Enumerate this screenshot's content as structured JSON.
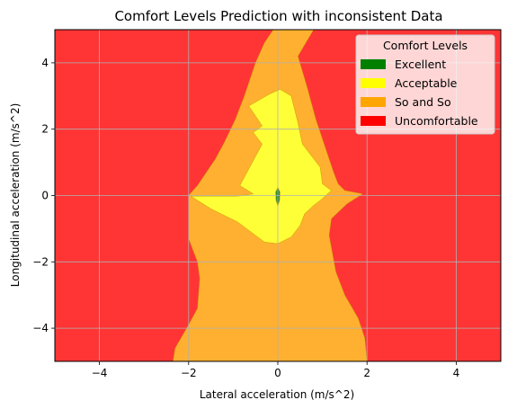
{
  "chart_data": {
    "type": "contour",
    "title": "Comfort Levels Prediction with inconsistent Data",
    "xlabel": "Lateral acceleration (m/s^2)",
    "ylabel": "Longitudinal acceleration (m/s^2)",
    "xlim": [
      -5,
      5
    ],
    "ylim": [
      -5,
      5
    ],
    "xticks": [
      -4,
      -2,
      0,
      2,
      4
    ],
    "yticks": [
      -4,
      -2,
      0,
      2,
      4
    ],
    "xtick_labels": [
      "−4",
      "−2",
      "0",
      "2",
      "4"
    ],
    "ytick_labels": [
      "−4",
      "−2",
      "0",
      "2",
      "4"
    ],
    "grid": true,
    "legend": {
      "title": "Comfort Levels",
      "placement": "top-right",
      "entries": [
        {
          "label": "Excellent",
          "color": "#008000"
        },
        {
          "label": "Acceptable",
          "color": "#ffff00"
        },
        {
          "label": "So and So",
          "color": "#ffa500"
        },
        {
          "label": "Uncomfortable",
          "color": "#ff0000"
        }
      ]
    },
    "regions": [
      {
        "level": "Uncomfortable",
        "fill": "#ff3535",
        "polygon": [
          [
            -5,
            -5
          ],
          [
            5,
            -5
          ],
          [
            5,
            5
          ],
          [
            -5,
            5
          ]
        ]
      },
      {
        "level": "So and So",
        "fill": "#ffb030",
        "polygon": [
          [
            -2.35,
            -5
          ],
          [
            2.0,
            -5
          ],
          [
            1.95,
            -4.3
          ],
          [
            1.8,
            -3.7
          ],
          [
            1.5,
            -3.0
          ],
          [
            1.3,
            -2.3
          ],
          [
            1.15,
            -1.2
          ],
          [
            1.2,
            -0.7
          ],
          [
            1.55,
            -0.25
          ],
          [
            1.9,
            0.05
          ],
          [
            1.5,
            0.15
          ],
          [
            1.35,
            0.35
          ],
          [
            1.25,
            0.7
          ],
          [
            1.05,
            1.5
          ],
          [
            0.85,
            2.3
          ],
          [
            0.65,
            3.3
          ],
          [
            0.45,
            4.2
          ],
          [
            0.8,
            5.0
          ],
          [
            -0.1,
            5.0
          ],
          [
            -0.3,
            4.6
          ],
          [
            -0.5,
            4.0
          ],
          [
            -0.75,
            3.0
          ],
          [
            -0.95,
            2.3
          ],
          [
            -1.2,
            1.6
          ],
          [
            -1.4,
            1.1
          ],
          [
            -1.8,
            0.3
          ],
          [
            -2.0,
            0.0
          ],
          [
            -2.0,
            -1.3
          ],
          [
            -1.8,
            -2.0
          ],
          [
            -1.75,
            -2.5
          ],
          [
            -1.8,
            -3.4
          ],
          [
            -2.0,
            -3.9
          ],
          [
            -2.3,
            -4.6
          ]
        ]
      },
      {
        "level": "Acceptable",
        "fill": "#ffff38",
        "polygon": [
          [
            -0.2,
            3.05
          ],
          [
            0.05,
            3.2
          ],
          [
            0.3,
            3.0
          ],
          [
            0.45,
            2.2
          ],
          [
            0.55,
            1.55
          ],
          [
            0.95,
            0.85
          ],
          [
            1.0,
            0.35
          ],
          [
            1.2,
            0.15
          ],
          [
            0.95,
            -0.15
          ],
          [
            0.8,
            -0.3
          ],
          [
            0.6,
            -0.55
          ],
          [
            0.5,
            -0.9
          ],
          [
            0.3,
            -1.25
          ],
          [
            0.0,
            -1.45
          ],
          [
            -0.3,
            -1.4
          ],
          [
            -0.6,
            -1.1
          ],
          [
            -0.9,
            -0.8
          ],
          [
            -1.5,
            -0.4
          ],
          [
            -1.95,
            -0.02
          ],
          [
            -1.4,
            -0.02
          ],
          [
            -0.9,
            -0.02
          ],
          [
            -0.55,
            0.05
          ],
          [
            -0.85,
            0.3
          ],
          [
            -0.35,
            1.55
          ],
          [
            -0.55,
            1.9
          ],
          [
            -0.35,
            2.1
          ],
          [
            -0.65,
            2.7
          ]
        ]
      },
      {
        "level": "Excellent",
        "fill": "#2e8b2e",
        "polygon": [
          [
            0.0,
            0.25
          ],
          [
            0.05,
            0.1
          ],
          [
            0.04,
            -0.15
          ],
          [
            0.0,
            -0.32
          ],
          [
            -0.04,
            -0.15
          ],
          [
            -0.05,
            0.1
          ]
        ]
      }
    ]
  }
}
